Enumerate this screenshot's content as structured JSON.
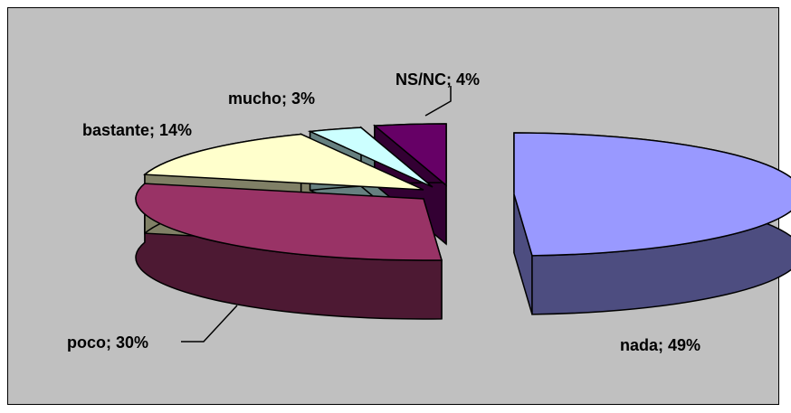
{
  "chart_data": {
    "type": "pie",
    "style": "3d-exploded",
    "title": "",
    "slices": [
      {
        "label": "nada",
        "value": 49,
        "text": "nada; 49%",
        "color": "#9999ff",
        "side_color": "#4d4d80"
      },
      {
        "label": "poco",
        "value": 30,
        "text": "poco; 30%",
        "color": "#993366",
        "side_color": "#4d1933"
      },
      {
        "label": "bastante",
        "value": 14,
        "text": "bastante; 14%",
        "color": "#ffffcc",
        "side_color": "#808066"
      },
      {
        "label": "mucho",
        "value": 3,
        "text": "mucho; 3%",
        "color": "#ccffff",
        "side_color": "#668080"
      },
      {
        "label": "NS/NC",
        "value": 4,
        "text": "NS/NC; 4%",
        "color": "#660066",
        "side_color": "#330033"
      }
    ],
    "legend": "none",
    "background": "#c0c0c0"
  }
}
